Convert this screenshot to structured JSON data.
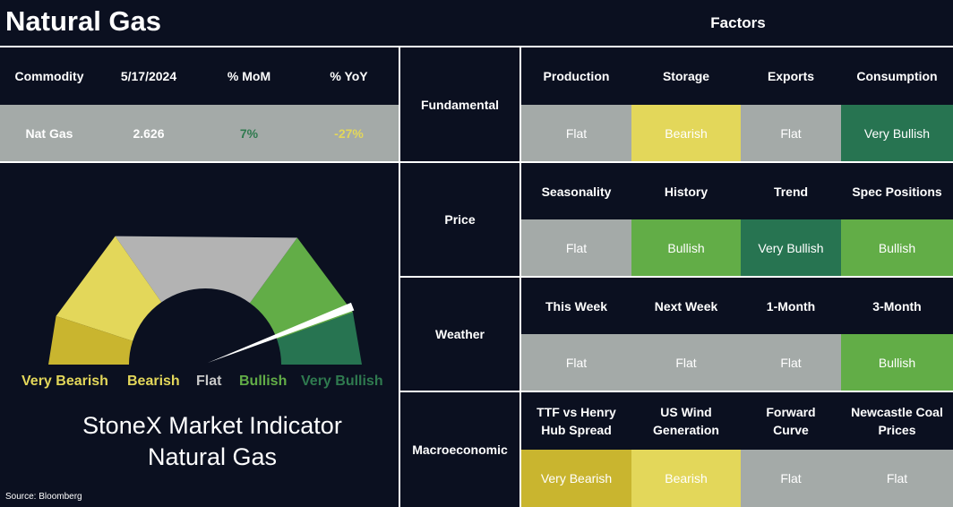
{
  "title": "Natural Gas",
  "factors_title": "Factors",
  "summary": {
    "headers": [
      "Commodity",
      "5/17/2024",
      "% MoM",
      "% YoY"
    ],
    "row": [
      {
        "text": "Nat Gas",
        "color": "#ffffff"
      },
      {
        "text": "2.626",
        "color": "#ffffff"
      },
      {
        "text": "7%",
        "color": "#2f7a4f"
      },
      {
        "text": "-27%",
        "color": "#e3d75a"
      }
    ]
  },
  "gauge": {
    "segments": [
      {
        "label": "Very Bearish",
        "color": "#c9b52f",
        "label_color": "#e3d75a"
      },
      {
        "label": "Bearish",
        "color": "#e3d75a",
        "label_color": "#e3d75a"
      },
      {
        "label": "Flat",
        "color": "#b3b3b3",
        "label_color": "#c8c8c8"
      },
      {
        "label": "Bullish",
        "color": "#62ad47",
        "label_color": "#62ad47"
      },
      {
        "label": "Very Bullish",
        "color": "#277451",
        "label_color": "#2f7a4f"
      }
    ],
    "caption": [
      "StoneX Market Indicator",
      "Natural Gas"
    ]
  },
  "source": "Source: Bloomberg",
  "factors": [
    {
      "category": "Fundamental",
      "items": [
        {
          "name": "Production",
          "signal": "Flat",
          "color": "#a4aaa8"
        },
        {
          "name": "Storage",
          "signal": "Bearish",
          "color": "#e3d75a"
        },
        {
          "name": "Exports",
          "signal": "Flat",
          "color": "#a4aaa8"
        },
        {
          "name": "Consumption",
          "signal": "Very Bullish",
          "color": "#277451"
        }
      ]
    },
    {
      "category": "Price",
      "items": [
        {
          "name": "Seasonality",
          "signal": "Flat",
          "color": "#a4aaa8"
        },
        {
          "name": "History",
          "signal": "Bullish",
          "color": "#62ad47"
        },
        {
          "name": "Trend",
          "signal": "Very Bullish",
          "color": "#277451"
        },
        {
          "name": "Spec Positions",
          "signal": "Bullish",
          "color": "#62ad47"
        }
      ]
    },
    {
      "category": "Weather",
      "items": [
        {
          "name": "This Week",
          "signal": "Flat",
          "color": "#a4aaa8"
        },
        {
          "name": "Next Week",
          "signal": "Flat",
          "color": "#a4aaa8"
        },
        {
          "name": "1-Month",
          "signal": "Flat",
          "color": "#a4aaa8"
        },
        {
          "name": "3-Month",
          "signal": "Bullish",
          "color": "#62ad47"
        }
      ]
    },
    {
      "category": "Macroeconomic",
      "items": [
        {
          "name": "TTF vs Henry Hub Spread",
          "signal": "Very Bearish",
          "color": "#c9b52f"
        },
        {
          "name": "US Wind Generation",
          "signal": "Bearish",
          "color": "#e3d75a"
        },
        {
          "name": "Forward Curve",
          "signal": "Flat",
          "color": "#a4aaa8"
        },
        {
          "name": "Newcastle Coal Prices",
          "signal": "Flat",
          "color": "#a4aaa8"
        }
      ]
    }
  ]
}
